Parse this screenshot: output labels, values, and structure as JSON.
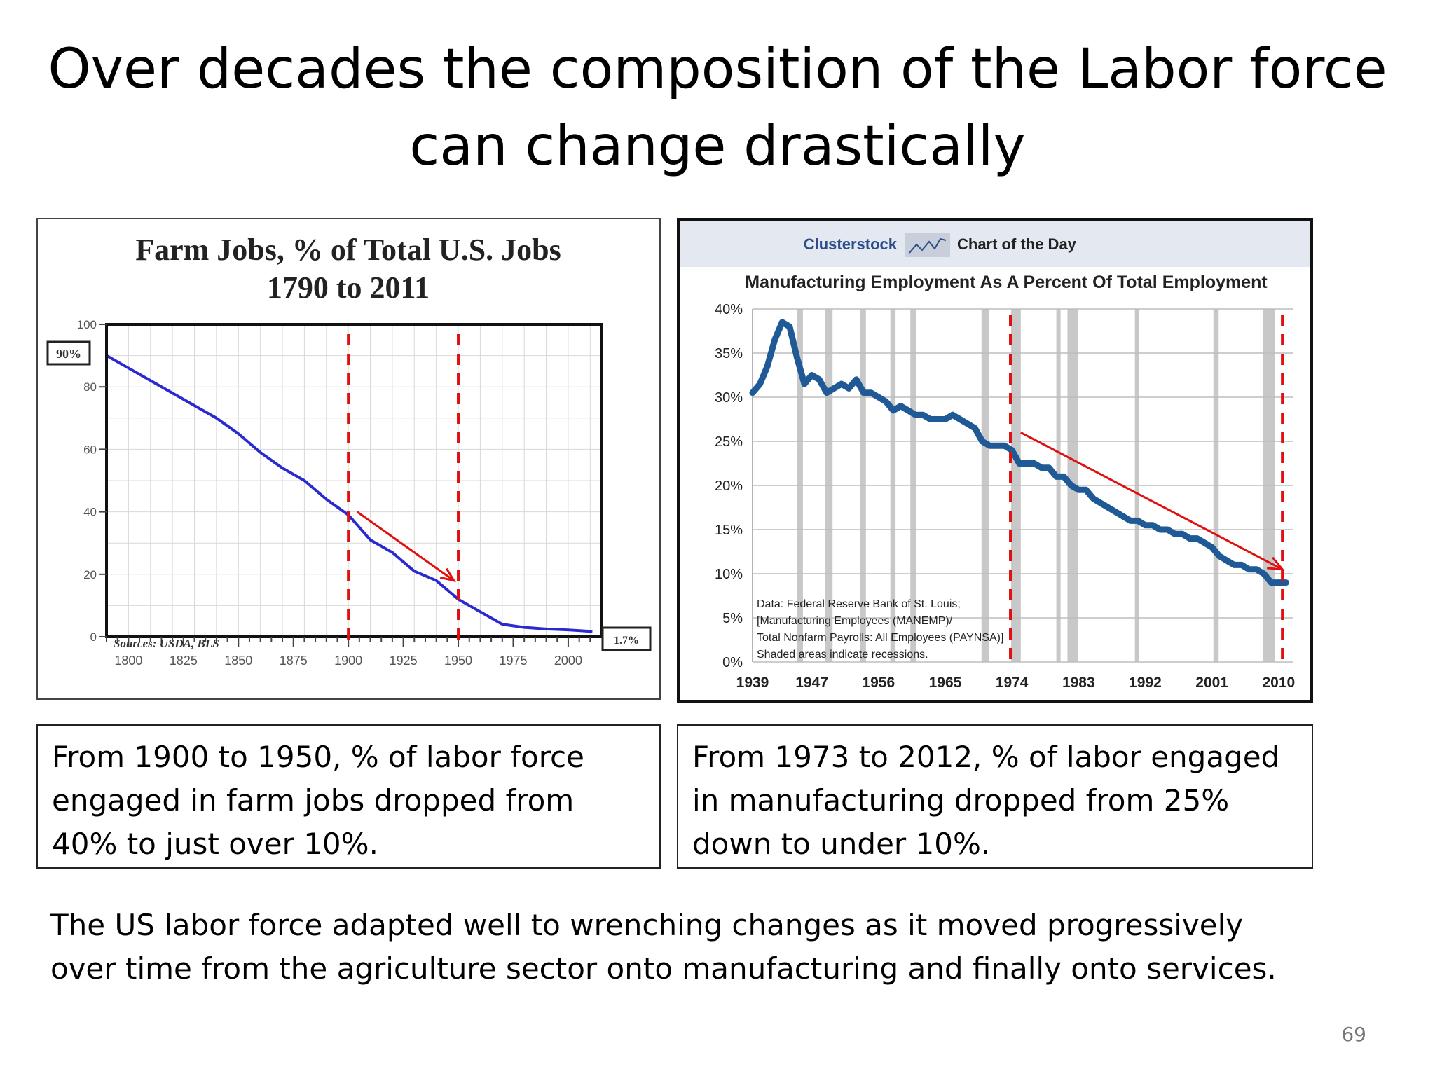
{
  "slide": {
    "title": "Over decades the composition of the Labor force can change drastically",
    "caption_left": "From 1900 to 1950, % of labor force engaged in farm jobs dropped from 40% to just over 10%.",
    "caption_right": "From 1973 to 2012, % of labor engaged in manufacturing dropped from 25% down to under 10%.",
    "summary": "The US labor force adapted well to wrenching changes as it moved progressively over time from the agriculture sector onto manufacturing and finally onto services.",
    "page_number": "69"
  },
  "farm_chart": {
    "title_line1": "Farm Jobs, % of Total U.S. Jobs",
    "title_line2": "1790 to 2011",
    "start_label": "90%",
    "end_label": "1.7%",
    "source": "Sources: USDA, BLS",
    "line_color": "#2a2ad0",
    "marker_color": "#e01010"
  },
  "mfg_chart": {
    "header_brand": "Clusterstock",
    "header_tag": "Chart of the Day",
    "title": "Manufacturing Employment As A Percent Of Total Employment",
    "note_lines": [
      "Data: Federal Reserve Bank of St. Louis;",
      "[Manufacturing Employees (MANEMP)/",
      "Total Nonfarm Payrolls: All Employees (PAYNSA)]",
      "Shaded areas indicate recessions."
    ],
    "line_color": "#1f5a96",
    "header_bg": "#e3e8f1",
    "recession_color": "#c8c8c8",
    "marker_color": "#e01010"
  },
  "chart_data": [
    {
      "type": "line",
      "title": "Farm Jobs, % of Total U.S. Jobs 1790 to 2011",
      "xlabel": "",
      "ylabel": "",
      "xlim": [
        1790,
        2015
      ],
      "ylim": [
        0,
        100
      ],
      "xticks": [
        1800,
        1825,
        1850,
        1875,
        1900,
        1925,
        1950,
        1975,
        2000
      ],
      "yticks": [
        0,
        20,
        40,
        60,
        80,
        100
      ],
      "grid": true,
      "series": [
        {
          "x": [
            1790,
            1800,
            1810,
            1820,
            1830,
            1840,
            1850,
            1860,
            1870,
            1880,
            1890,
            1900,
            1910,
            1920,
            1930,
            1940,
            1950,
            1960,
            1970,
            1980,
            1990,
            2000,
            2011
          ],
          "y": [
            90,
            86,
            82,
            78,
            74,
            70,
            65,
            59,
            54,
            50,
            44,
            39,
            31,
            27,
            21,
            18,
            12,
            8,
            4,
            3,
            2.5,
            2.2,
            1.7
          ]
        }
      ],
      "annotations": {
        "markers": [
          1900,
          1950
        ],
        "arrow": {
          "from": [
            1904,
            40
          ],
          "to": [
            1948,
            18
          ]
        }
      }
    },
    {
      "type": "line",
      "title": "Manufacturing Employment As A Percent Of Total Employment",
      "xlabel": "",
      "ylabel": "",
      "xlim": [
        1939,
        2012
      ],
      "ylim": [
        0,
        40
      ],
      "xticks": [
        1939,
        1947,
        1956,
        1965,
        1974,
        1983,
        1992,
        2001,
        2010
      ],
      "ytick_labels": [
        "0%",
        "5%",
        "10%",
        "15%",
        "20%",
        "25%",
        "30%",
        "35%",
        "40%"
      ],
      "grid": true,
      "recessions": [
        [
          1945,
          1945.8
        ],
        [
          1948.8,
          1949.8
        ],
        [
          1953.5,
          1954.3
        ],
        [
          1957.6,
          1958.3
        ],
        [
          1960.3,
          1961.1
        ],
        [
          1969.9,
          1970.9
        ],
        [
          1973.9,
          1975.2
        ],
        [
          1980.0,
          1980.5
        ],
        [
          1981.5,
          1982.9
        ],
        [
          1990.6,
          1991.2
        ],
        [
          2001.2,
          2001.9
        ],
        [
          2007.9,
          2009.5
        ]
      ],
      "series": [
        {
          "x": [
            1939,
            1940,
            1941,
            1942,
            1943,
            1944,
            1945,
            1946,
            1947,
            1948,
            1949,
            1950,
            1951,
            1952,
            1953,
            1954,
            1955,
            1956,
            1957,
            1958,
            1959,
            1960,
            1961,
            1962,
            1963,
            1964,
            1965,
            1966,
            1967,
            1968,
            1969,
            1970,
            1971,
            1972,
            1973,
            1974,
            1975,
            1976,
            1977,
            1978,
            1979,
            1980,
            1981,
            1982,
            1983,
            1984,
            1985,
            1986,
            1987,
            1988,
            1989,
            1990,
            1991,
            1992,
            1993,
            1994,
            1995,
            1996,
            1997,
            1998,
            1999,
            2000,
            2001,
            2002,
            2003,
            2004,
            2005,
            2006,
            2007,
            2008,
            2009,
            2010,
            2011
          ],
          "y": [
            30.5,
            31.5,
            33.5,
            36.5,
            38.5,
            38,
            34.5,
            31.5,
            32.5,
            32,
            30.5,
            31,
            31.5,
            31,
            32,
            30.5,
            30.5,
            30,
            29.5,
            28.5,
            29,
            28.5,
            28,
            28,
            27.5,
            27.5,
            27.5,
            28,
            27.5,
            27,
            26.5,
            25,
            24.5,
            24.5,
            24.5,
            24,
            22.5,
            22.5,
            22.5,
            22,
            22,
            21,
            21,
            20,
            19.5,
            19.5,
            18.5,
            18,
            17.5,
            17,
            16.5,
            16,
            16,
            15.5,
            15.5,
            15,
            15,
            14.5,
            14.5,
            14,
            14,
            13.5,
            13,
            12,
            11.5,
            11,
            11,
            10.5,
            10.5,
            10,
            9,
            9,
            9
          ]
        }
      ],
      "annotations": {
        "markers": [
          1973.8,
          2010.5
        ],
        "arrow": {
          "from": [
            1975.2,
            26
          ],
          "to": [
            2010.5,
            10.5
          ]
        }
      }
    }
  ]
}
